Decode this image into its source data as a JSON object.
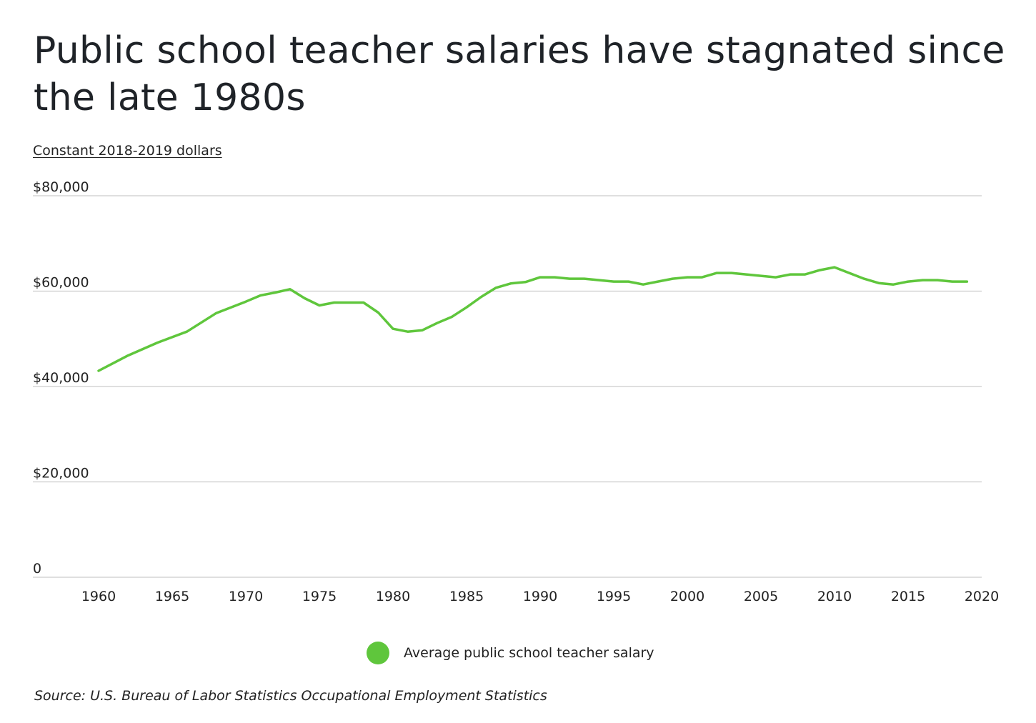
{
  "title": "Public school teacher salaries have stagnated since the late 1980s",
  "subtitle": "Constant 2018-2019 dollars",
  "legend": {
    "label": "Average public school teacher salary"
  },
  "source": "Source:  U.S. Bureau of Labor Statistics Occupational Employment Statistics",
  "colors": {
    "line": "#5fc63c",
    "grid": "#cccccc",
    "text": "#222222"
  },
  "chart_data": {
    "type": "line",
    "title": "Public school teacher salaries have stagnated since the late 1980s",
    "ylabel": "Constant 2018-2019 dollars",
    "xlim": [
      1956,
      2020
    ],
    "ylim": [
      0,
      80000
    ],
    "grid": true,
    "legend_position": "bottom-center",
    "x_ticks": [
      1960,
      1965,
      1970,
      1975,
      1980,
      1985,
      1990,
      1995,
      2000,
      2005,
      2010,
      2015,
      2020
    ],
    "x_tick_labels": [
      "1960",
      "1965",
      "1970",
      "1975",
      "1980",
      "1985",
      "1990",
      "1995",
      "2000",
      "2005",
      "2010",
      "2015",
      "2020"
    ],
    "y_ticks": [
      0,
      20000,
      40000,
      60000,
      80000
    ],
    "y_tick_labels": [
      "0",
      "$20,000",
      "$40,000",
      "$60,000",
      "$80,000"
    ],
    "series": [
      {
        "name": "Average public school teacher salary",
        "x": [
          1960,
          1962,
          1964,
          1966,
          1968,
          1970,
          1971,
          1972,
          1973,
          1974,
          1975,
          1976,
          1977,
          1978,
          1979,
          1980,
          1981,
          1982,
          1983,
          1984,
          1985,
          1986,
          1987,
          1988,
          1989,
          1990,
          1991,
          1992,
          1993,
          1994,
          1995,
          1996,
          1997,
          1998,
          1999,
          2000,
          2001,
          2002,
          2003,
          2004,
          2005,
          2006,
          2007,
          2008,
          2009,
          2010,
          2011,
          2012,
          2013,
          2014,
          2015,
          2016,
          2017,
          2018,
          2019
        ],
        "values": [
          43300,
          46500,
          49200,
          51500,
          55400,
          57800,
          59100,
          59700,
          60400,
          58500,
          57000,
          57600,
          57600,
          57600,
          55500,
          52100,
          51500,
          51800,
          53300,
          54600,
          56600,
          58800,
          60700,
          61600,
          61900,
          62900,
          62900,
          62600,
          62600,
          62300,
          62000,
          62000,
          61400,
          62000,
          62600,
          62900,
          62900,
          63800,
          63800,
          63500,
          63200,
          62900,
          63500,
          63500,
          64400,
          65000,
          63800,
          62600,
          61700,
          61400,
          62000,
          62300,
          62300,
          62000,
          62000
        ]
      }
    ]
  }
}
